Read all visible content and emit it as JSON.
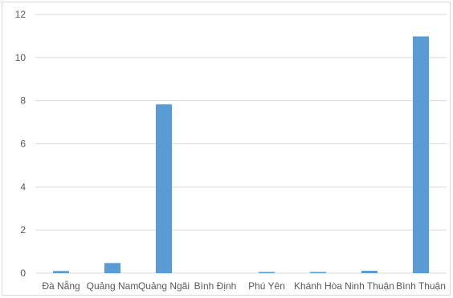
{
  "chart_data": {
    "type": "bar",
    "categories": [
      "Đà Nẵng",
      "Quảng Nam",
      "Quảng Ngãi",
      "Bình Định",
      "Phú Yên",
      "Khánh Hòa",
      "Ninh Thuận",
      "Bình Thuận"
    ],
    "values": [
      0.1,
      0.47,
      7.83,
      0.0,
      0.03,
      0.04,
      0.11,
      10.98
    ],
    "ylim": [
      0,
      12
    ],
    "yticks": [
      0,
      2,
      4,
      6,
      8,
      10,
      12
    ],
    "title": "",
    "xlabel": "",
    "ylabel": "",
    "grid": true,
    "legend": "none",
    "bar_color": "#5B9BD5",
    "grid_color": "#d9d9d9"
  }
}
